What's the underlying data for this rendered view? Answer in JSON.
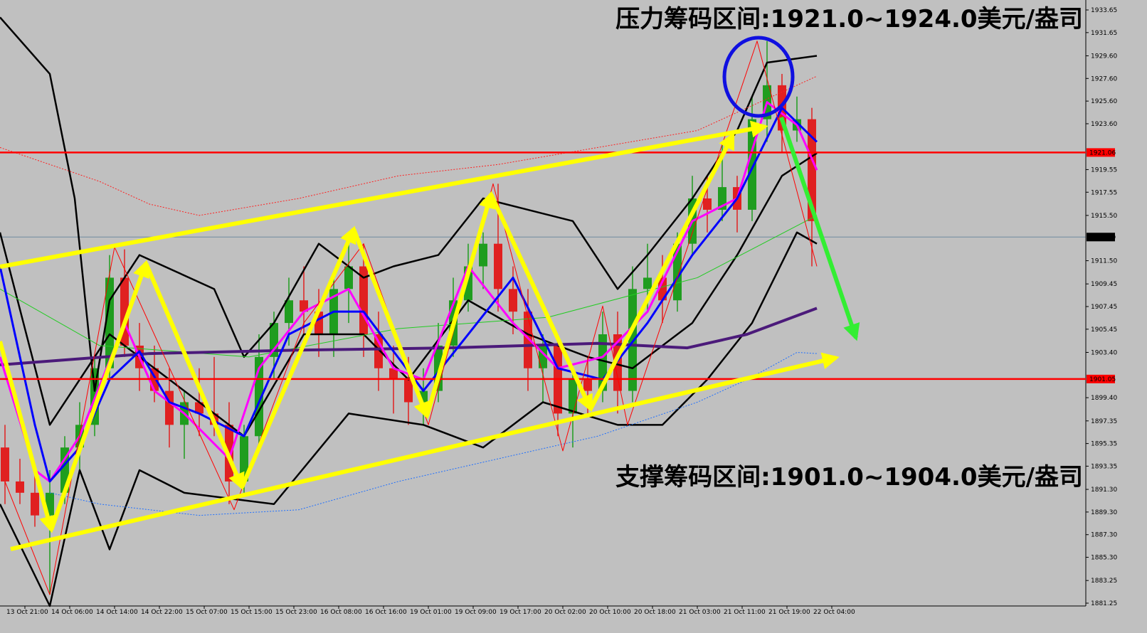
{
  "chart_data": {
    "type": "candlestick",
    "background": "#c0c0c0",
    "up_color": "#1f9d1f",
    "down_color": "#e02020",
    "xlim": [
      0,
      218
    ],
    "ylim": [
      1881.0,
      1934.53
    ],
    "xticks": [
      {
        "value": 5,
        "label": "13 Oct 21:00"
      },
      {
        "value": 14,
        "label": "14 Oct 06:00"
      },
      {
        "value": 23,
        "label": "14 Oct 14:00"
      },
      {
        "value": 32,
        "label": "14 Oct 22:00"
      },
      {
        "value": 41,
        "label": "15 Oct 07:00"
      },
      {
        "value": 50,
        "label": "15 Oct 15:00"
      },
      {
        "value": 59,
        "label": "15 Oct 23:00"
      },
      {
        "value": 68,
        "label": "16 Oct 08:00"
      },
      {
        "value": 77,
        "label": "16 Oct 16:00"
      },
      {
        "value": 86,
        "label": "19 Oct 01:00"
      },
      {
        "value": 95,
        "label": "19 Oct 09:00"
      },
      {
        "value": 104,
        "label": "19 Oct 17:00"
      },
      {
        "value": 113,
        "label": "20 Oct 02:00"
      },
      {
        "value": 122,
        "label": "20 Oct 10:00"
      },
      {
        "value": 131,
        "label": "20 Oct 18:00"
      },
      {
        "value": 140,
        "label": "21 Oct 03:00"
      },
      {
        "value": 149,
        "label": "21 Oct 11:00"
      },
      {
        "value": 158,
        "label": "21 Oct 19:00"
      },
      {
        "value": 167,
        "label": "22 Oct 04:00"
      }
    ],
    "yticks": [
      1933.65,
      1931.65,
      {
        "value": 1929.6,
        "label": "1929.60"
      },
      {
        "value": 1927.6,
        "label": "1927.60"
      },
      {
        "value": 1925.6,
        "label": "1925.60"
      },
      {
        "value": 1923.6,
        "label": "1923.60"
      },
      1919.55,
      1917.55,
      {
        "value": 1915.5,
        "label": "1915.50"
      },
      {
        "value": 1911.5,
        "label": "1911.50"
      },
      1909.45,
      1907.45,
      1905.45,
      {
        "value": 1903.4,
        "label": "1903.40"
      },
      {
        "value": 1899.4,
        "label": "1899.40"
      },
      1897.35,
      1895.35,
      1893.35,
      {
        "value": 1891.3,
        "label": "1891.30"
      },
      {
        "value": 1889.3,
        "label": "1889.30"
      },
      {
        "value": 1887.3,
        "label": "1887.30"
      },
      {
        "value": 1885.3,
        "label": "1885.30"
      },
      1883.25,
      1881.25
    ],
    "hlines": [
      1921.06,
      1901.05
    ],
    "hline_color": "#ff0000",
    "price_line": 1913.59,
    "price_line_color": "#6f8aa0",
    "candles": {
      "x": [
        1,
        4,
        7,
        10,
        13,
        16,
        19,
        22,
        25,
        28,
        31,
        34,
        37,
        40,
        43,
        46,
        49,
        52,
        55,
        58,
        61,
        64,
        67,
        70,
        73,
        76,
        79,
        82,
        85,
        88,
        91,
        94,
        97,
        100,
        103,
        106,
        109,
        112,
        115,
        118,
        121,
        124,
        127,
        130,
        133,
        136,
        139,
        142,
        145,
        148,
        151,
        154,
        157,
        160,
        163
      ],
      "open": [
        1895,
        1892,
        1891,
        1889,
        1891,
        1895,
        1897,
        1902,
        1910,
        1904,
        1902,
        1900,
        1897,
        1899,
        1898,
        1897,
        1892,
        1896,
        1903,
        1906,
        1908,
        1907,
        1905,
        1909,
        1911,
        1905,
        1902,
        1901,
        1899,
        1900,
        1904,
        1908,
        1911,
        1913,
        1909,
        1907,
        1902,
        1904,
        1898,
        1901,
        1900,
        1905,
        1900,
        1909,
        1910,
        1908,
        1913,
        1917,
        1916,
        1918,
        1916,
        1924,
        1927,
        1923,
        1924
      ],
      "high": [
        1897,
        1894,
        1893,
        1893,
        1896,
        1899,
        1903,
        1912,
        1912.5,
        1906,
        1904,
        1902,
        1900,
        1902,
        1903,
        1899,
        1897,
        1905,
        1907,
        1910,
        1911,
        1909,
        1910,
        1913,
        1913,
        1907,
        1904,
        1903,
        1902,
        1906,
        1910,
        1913,
        1914,
        1918.3,
        1911,
        1909,
        1905,
        1905,
        1902,
        1903,
        1907,
        1907,
        1911,
        1913,
        1912,
        1914,
        1919,
        1919,
        1922,
        1919,
        1926,
        1930.9,
        1928,
        1926,
        1925
      ],
      "low": [
        1890,
        1890,
        1888,
        1882,
        1890,
        1893,
        1896,
        1901,
        1903,
        1900,
        1899,
        1895,
        1894,
        1896,
        1896,
        1890,
        1891,
        1895,
        1901,
        1904,
        1905,
        1903,
        1903,
        1906,
        1903,
        1900,
        1898,
        1897,
        1897,
        1899,
        1903,
        1907,
        1909,
        1907,
        1905,
        1900,
        1899,
        1896,
        1895,
        1898,
        1899,
        1898,
        1899,
        1907,
        1906,
        1907,
        1912,
        1914,
        1915,
        1914,
        1915,
        1922,
        1921,
        1922,
        1911
      ],
      "close": [
        1892,
        1891,
        1889,
        1891,
        1895,
        1897,
        1902,
        1910,
        1904,
        1902,
        1900,
        1897,
        1899,
        1898,
        1897,
        1892,
        1896,
        1903,
        1906,
        1908,
        1907,
        1905,
        1909,
        1911,
        1905,
        1902,
        1901,
        1899,
        1900,
        1904,
        1908,
        1911,
        1913,
        1909,
        1907,
        1902,
        1904,
        1898,
        1901,
        1900,
        1905,
        1900,
        1909,
        1910,
        1908,
        1913,
        1917,
        1916,
        1918,
        1916,
        1924,
        1927,
        1923,
        1924,
        1915
      ]
    },
    "lines": [
      {
        "color": "#000000",
        "width": 2.5,
        "x": [
          0,
          10,
          15,
          19,
          22,
          28,
          43,
          49,
          55,
          64,
          73,
          79,
          88,
          97,
          106,
          115,
          124,
          130,
          139,
          148,
          154,
          164
        ],
        "values": [
          1933,
          1928,
          1917,
          1900,
          1908,
          1912,
          1909,
          1903,
          1906,
          1913,
          1910,
          1911,
          1912,
          1917,
          1916,
          1915,
          1909,
          1912,
          1917,
          1923,
          1929,
          1929.6
        ]
      },
      {
        "color": "#000000",
        "width": 2.5,
        "x": [
          0,
          10,
          22,
          34,
          49,
          61,
          73,
          82,
          94,
          106,
          118,
          127,
          139,
          148,
          157,
          164
        ],
        "values": [
          1914,
          1897,
          1905,
          1901,
          1896,
          1905,
          1905,
          1901,
          1908,
          1905,
          1903,
          1902,
          1906,
          1912,
          1919,
          1921
        ]
      },
      {
        "color": "#000000",
        "width": 2.5,
        "x": [
          0,
          10,
          16,
          22,
          28,
          37,
          55,
          70,
          85,
          97,
          109,
          124,
          133,
          142,
          151,
          160,
          164
        ],
        "values": [
          1890,
          1881,
          1893,
          1886,
          1893,
          1891,
          1890,
          1898,
          1897,
          1895,
          1899,
          1897,
          1897,
          1901,
          1906,
          1914,
          1913
        ]
      },
      {
        "color": "#ff2020",
        "width": 1,
        "dash": "2,2",
        "x": [
          0,
          10,
          20,
          30,
          40,
          60,
          80,
          100,
          120,
          140,
          150,
          164
        ],
        "values": [
          1921.5,
          1920,
          1918.5,
          1916.5,
          1915.5,
          1917,
          1919,
          1920,
          1921.5,
          1923,
          1925,
          1927.8
        ]
      },
      {
        "color": "#1e6fff",
        "width": 1,
        "dash": "2,2",
        "x": [
          10,
          20,
          40,
          60,
          80,
          100,
          120,
          140,
          150,
          160,
          164
        ],
        "values": [
          1891,
          1890,
          1889,
          1889.5,
          1892,
          1894,
          1896,
          1899,
          1901,
          1903.4,
          1903.3
        ]
      },
      {
        "color": "#22cc22",
        "width": 1,
        "x": [
          0,
          20,
          50,
          80,
          110,
          140,
          164
        ],
        "values": [
          1909,
          1904,
          1903,
          1905.5,
          1906.5,
          1910,
          1915.5
        ]
      },
      {
        "color": "#4b1a7a",
        "width": 4,
        "x": [
          0,
          30,
          60,
          90,
          120,
          138,
          150,
          164
        ],
        "values": [
          1902.3,
          1903.3,
          1903.6,
          1903.8,
          1904.2,
          1903.8,
          1905,
          1907.3
        ]
      },
      {
        "color": "#ff00ff",
        "width": 3,
        "x": [
          0,
          7,
          10,
          16,
          25,
          31,
          37,
          46,
          52,
          61,
          70,
          79,
          85,
          94,
          103,
          112,
          121,
          130,
          139,
          148,
          154,
          160,
          164
        ],
        "values": [
          1903,
          1893,
          1892,
          1896,
          1906,
          1900,
          1898,
          1894,
          1902,
          1907,
          1909,
          1902,
          1901,
          1911,
          1906,
          1902,
          1903,
          1907,
          1915,
          1917,
          1925.5,
          1923.5,
          1919.5
        ]
      },
      {
        "color": "#0000ff",
        "width": 3,
        "x": [
          0,
          7,
          10,
          16,
          22,
          28,
          34,
          40,
          49,
          58,
          67,
          73,
          85,
          94,
          103,
          112,
          121,
          130,
          139,
          148,
          157,
          164
        ],
        "values": [
          1911,
          1897,
          1892,
          1895,
          1901,
          1903.5,
          1899,
          1898,
          1896,
          1905,
          1907,
          1907,
          1900,
          1905,
          1910,
          1902,
          1901,
          1906,
          1912,
          1917,
          1925,
          1922
        ]
      },
      {
        "color": "#ff0000",
        "width": 1,
        "x": [
          1,
          10,
          23,
          47,
          61,
          73,
          86,
          99,
          113,
          121,
          126,
          152,
          164
        ],
        "values": [
          1892,
          1882,
          1912.7,
          1889.5,
          1906,
          1913,
          1897,
          1918.3,
          1894.7,
          1907.5,
          1897,
          1930.9,
          1911
        ]
      }
    ],
    "annotations": [
      "压力筹码区间:1921.0~1924.0美元/盎司",
      "支撑筹码区间:1901.0~1904.0美元/盎司"
    ]
  }
}
